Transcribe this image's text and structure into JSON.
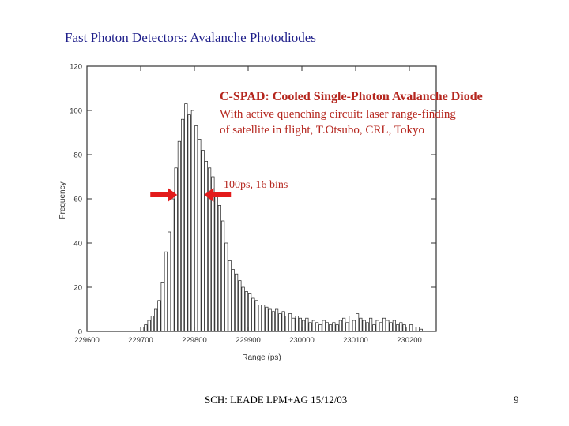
{
  "slide": {
    "title": "Fast Photon Detectors: Avalanche Photodiodes",
    "footer": "SCH: LEADE LPM+AG 15/12/03",
    "page_number": "9"
  },
  "annotation": {
    "title": "C-SPAD: Cooled Single-Photon Avalanche Diode",
    "line1": "With active quenching circuit: laser range-finding",
    "line2": "of satellite in flight, T.Otsubo, CRL, Tokyo",
    "bins_label": "100ps, 16 bins"
  },
  "colors": {
    "title": "#1f1f8a",
    "annotation": "#b5261e",
    "arrow": "#e31b1b"
  },
  "chart_data": {
    "type": "bar",
    "xlabel": "Range (ps)",
    "ylabel": "Frequency",
    "xlim": [
      229600,
      230250
    ],
    "ylim": [
      0,
      120
    ],
    "yticks": [
      0,
      20,
      40,
      60,
      80,
      100,
      120
    ],
    "xticks": [
      229600,
      229700,
      229800,
      229900,
      230000,
      230100,
      230200
    ],
    "bin_width_ps": 6.25,
    "bins": [
      [
        229700,
        2
      ],
      [
        229706.25,
        3
      ],
      [
        229712.5,
        5
      ],
      [
        229718.75,
        7
      ],
      [
        229725,
        10
      ],
      [
        229731.25,
        14
      ],
      [
        229737.5,
        22
      ],
      [
        229743.75,
        36
      ],
      [
        229750,
        45
      ],
      [
        229756.25,
        60
      ],
      [
        229762.5,
        74
      ],
      [
        229768.75,
        86
      ],
      [
        229775,
        96
      ],
      [
        229781.25,
        103
      ],
      [
        229787.5,
        98
      ],
      [
        229793.75,
        100
      ],
      [
        229800,
        93
      ],
      [
        229806.25,
        87
      ],
      [
        229812.5,
        82
      ],
      [
        229818.75,
        77
      ],
      [
        229825,
        74
      ],
      [
        229831.25,
        70
      ],
      [
        229837.5,
        63
      ],
      [
        229843.75,
        57
      ],
      [
        229850,
        50
      ],
      [
        229856.25,
        40
      ],
      [
        229862.5,
        32
      ],
      [
        229868.75,
        28
      ],
      [
        229875,
        26
      ],
      [
        229881.25,
        23
      ],
      [
        229887.5,
        20
      ],
      [
        229893.75,
        18
      ],
      [
        229900,
        17
      ],
      [
        229906.25,
        15
      ],
      [
        229912.5,
        14
      ],
      [
        229918.75,
        12
      ],
      [
        229925,
        12
      ],
      [
        229931.25,
        11
      ],
      [
        229937.5,
        10
      ],
      [
        229943.75,
        9
      ],
      [
        229950,
        10
      ],
      [
        229956.25,
        8
      ],
      [
        229962.5,
        9
      ],
      [
        229968.75,
        7
      ],
      [
        229975,
        8
      ],
      [
        229981.25,
        6
      ],
      [
        229987.5,
        7
      ],
      [
        229993.75,
        6
      ],
      [
        230000,
        5
      ],
      [
        230006.25,
        6
      ],
      [
        230012.5,
        4
      ],
      [
        230018.75,
        5
      ],
      [
        230025,
        4
      ],
      [
        230031.25,
        3
      ],
      [
        230037.5,
        5
      ],
      [
        230043.75,
        4
      ],
      [
        230050,
        3
      ],
      [
        230056.25,
        4
      ],
      [
        230062.5,
        3
      ],
      [
        230068.75,
        5
      ],
      [
        230075,
        6
      ],
      [
        230081.25,
        4
      ],
      [
        230087.5,
        7
      ],
      [
        230093.75,
        5
      ],
      [
        230100,
        8
      ],
      [
        230106.25,
        6
      ],
      [
        230112.5,
        5
      ],
      [
        230118.75,
        4
      ],
      [
        230125,
        6
      ],
      [
        230131.25,
        3
      ],
      [
        230137.5,
        5
      ],
      [
        230143.75,
        4
      ],
      [
        230150,
        6
      ],
      [
        230156.25,
        5
      ],
      [
        230162.5,
        4
      ],
      [
        230168.75,
        5
      ],
      [
        230175,
        3
      ],
      [
        230181.25,
        4
      ],
      [
        230187.5,
        3
      ],
      [
        230193.75,
        2
      ],
      [
        230200,
        3
      ],
      [
        230206.25,
        2
      ],
      [
        230212.5,
        2
      ],
      [
        230218.75,
        1
      ]
    ],
    "fwhm_markers": [
      229768,
      229818
    ]
  }
}
